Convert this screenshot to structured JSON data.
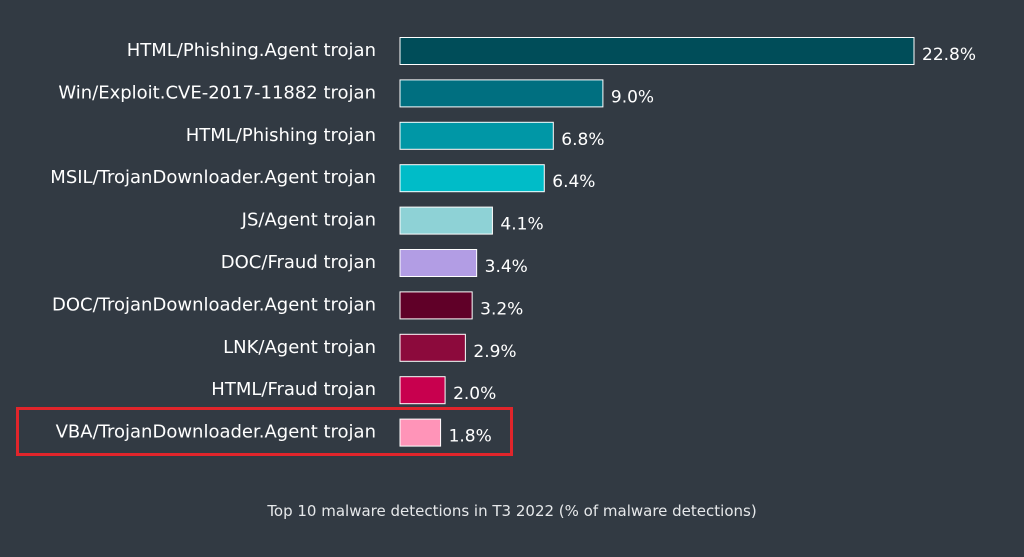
{
  "chart_data": {
    "type": "bar",
    "orientation": "horizontal",
    "categories": [
      "HTML/Phishing.Agent trojan",
      "Win/Exploit.CVE-2017-11882 trojan",
      "HTML/Phishing trojan",
      "MSIL/TrojanDownloader.Agent trojan",
      "JS/Agent trojan",
      "DOC/Fraud trojan",
      "DOC/TrojanDownloader.Agent trojan",
      "LNK/Agent trojan",
      "HTML/Fraud trojan",
      "VBA/TrojanDownloader.Agent trojan"
    ],
    "values": [
      22.8,
      9.0,
      6.8,
      6.4,
      4.1,
      3.4,
      3.2,
      2.9,
      2.0,
      1.8
    ],
    "value_labels": [
      "22.8%",
      "9.0%",
      "6.8%",
      "6.4%",
      "4.1%",
      "3.4%",
      "3.2%",
      "2.9%",
      "2.0%",
      "1.8%"
    ],
    "colors": [
      "#004d59",
      "#006f80",
      "#0097a6",
      "#00bcc8",
      "#8ed2d6",
      "#b29de4",
      "#600028",
      "#8c0a3c",
      "#c8004e",
      "#ff94b8"
    ],
    "highlighted_category": "VBA/TrojanDownloader.Agent trojan",
    "highlight_color": "#e1252b",
    "caption": "Top 10 malware detections in T3 2022 (% of malware detections)",
    "xlim": [
      0,
      22.8
    ],
    "grid": false,
    "legend": "none"
  }
}
